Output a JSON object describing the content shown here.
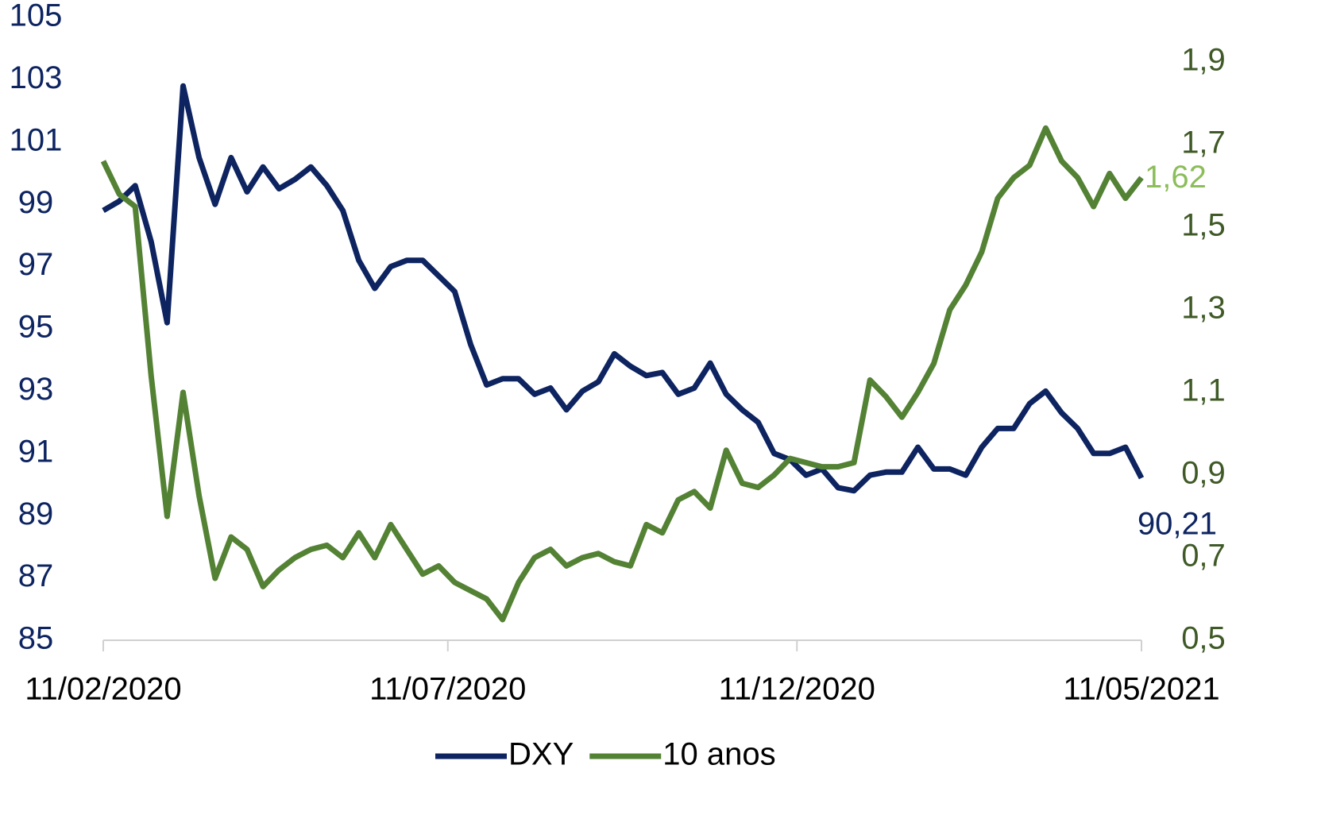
{
  "chart_data": {
    "type": "line",
    "x": [
      "11/02/2020",
      "18/02/2020",
      "25/02/2020",
      "03/03/2020",
      "10/03/2020",
      "17/03/2020",
      "24/03/2020",
      "31/03/2020",
      "07/04/2020",
      "14/04/2020",
      "21/04/2020",
      "28/04/2020",
      "05/05/2020",
      "12/05/2020",
      "19/05/2020",
      "26/05/2020",
      "02/06/2020",
      "09/06/2020",
      "16/06/2020",
      "23/06/2020",
      "30/06/2020",
      "07/07/2020",
      "14/07/2020",
      "21/07/2020",
      "28/07/2020",
      "04/08/2020",
      "11/08/2020",
      "18/08/2020",
      "25/08/2020",
      "01/09/2020",
      "08/09/2020",
      "15/09/2020",
      "22/09/2020",
      "29/09/2020",
      "06/10/2020",
      "13/10/2020",
      "20/10/2020",
      "27/10/2020",
      "03/11/2020",
      "10/11/2020",
      "17/11/2020",
      "24/11/2020",
      "01/12/2020",
      "08/12/2020",
      "15/12/2020",
      "22/12/2020",
      "29/12/2020",
      "05/01/2021",
      "12/01/2021",
      "19/01/2021",
      "26/01/2021",
      "02/02/2021",
      "09/02/2021",
      "16/02/2021",
      "23/02/2021",
      "02/03/2021",
      "09/03/2021",
      "16/03/2021",
      "23/03/2021",
      "30/03/2021",
      "06/04/2021",
      "13/04/2021",
      "20/04/2021",
      "27/04/2021",
      "04/05/2021",
      "11/05/2021"
    ],
    "xlim": [
      "11/02/2020",
      "11/05/2021"
    ],
    "xticks": [
      "11/02/2020",
      "11/07/2020",
      "11/12/2020",
      "11/05/2021"
    ],
    "ylim": [
      85,
      105
    ],
    "yticks": [
      85,
      87,
      89,
      91,
      93,
      95,
      97,
      99,
      101,
      103,
      105
    ],
    "y2lim": [
      0.5,
      1.9
    ],
    "y2ticks": [
      {
        "value": 0.5,
        "label": "0,5"
      },
      {
        "value": 0.7,
        "label": "0,7"
      },
      {
        "value": 0.9,
        "label": "0,9"
      },
      {
        "value": 1.1,
        "label": "1,1"
      },
      {
        "value": 1.3,
        "label": "1,3"
      },
      {
        "value": 1.5,
        "label": "1,5"
      },
      {
        "value": 1.7,
        "label": "1,7"
      },
      {
        "value": 1.9,
        "label": "1,9"
      }
    ],
    "grid": false,
    "legend": "bottom",
    "series": [
      {
        "name": "DXY",
        "color": "#0d2461",
        "axis": "y",
        "values": [
          98.8,
          99.1,
          99.6,
          97.8,
          95.2,
          102.8,
          100.5,
          99.0,
          100.5,
          99.4,
          100.2,
          99.5,
          99.8,
          100.2,
          99.6,
          98.8,
          97.2,
          96.3,
          97.0,
          97.2,
          97.2,
          96.7,
          96.2,
          94.5,
          93.2,
          93.4,
          93.4,
          92.9,
          93.1,
          92.4,
          93.0,
          93.3,
          94.2,
          93.8,
          93.5,
          93.6,
          92.9,
          93.1,
          93.9,
          92.9,
          92.4,
          92.0,
          91.0,
          90.8,
          90.3,
          90.5,
          89.9,
          89.8,
          90.3,
          90.4,
          90.4,
          91.2,
          90.5,
          90.5,
          90.3,
          91.2,
          91.8,
          91.8,
          92.6,
          93.0,
          92.3,
          91.8,
          91.0,
          91.0,
          91.2,
          90.21
        ],
        "value_labels": [
          null,
          null,
          null,
          null,
          null,
          null,
          null,
          null,
          null,
          null,
          null,
          null,
          null,
          null,
          null,
          null,
          null,
          null,
          null,
          null,
          null,
          null,
          null,
          null,
          null,
          null,
          null,
          null,
          null,
          null,
          null,
          null,
          null,
          null,
          null,
          null,
          null,
          null,
          null,
          null,
          null,
          null,
          null,
          null,
          null,
          null,
          null,
          null,
          null,
          null,
          null,
          null,
          null,
          null,
          null,
          null,
          null,
          null,
          null,
          null,
          null,
          null,
          null,
          null,
          null,
          "90,21"
        ],
        "label_color": "#0d2461"
      },
      {
        "name": "10 anos",
        "color": "#548235",
        "axis": "y2",
        "values": [
          1.66,
          1.58,
          1.55,
          1.14,
          0.8,
          1.1,
          0.85,
          0.65,
          0.75,
          0.72,
          0.63,
          0.67,
          0.7,
          0.72,
          0.73,
          0.7,
          0.76,
          0.7,
          0.78,
          0.72,
          0.66,
          0.68,
          0.64,
          0.62,
          0.6,
          0.55,
          0.64,
          0.7,
          0.72,
          0.68,
          0.7,
          0.71,
          0.69,
          0.68,
          0.78,
          0.76,
          0.84,
          0.86,
          0.82,
          0.96,
          0.88,
          0.87,
          0.9,
          0.94,
          0.93,
          0.92,
          0.92,
          0.93,
          1.13,
          1.09,
          1.04,
          1.1,
          1.17,
          1.3,
          1.36,
          1.44,
          1.57,
          1.62,
          1.65,
          1.74,
          1.66,
          1.62,
          1.55,
          1.63,
          1.57,
          1.62
        ],
        "value_labels": [
          null,
          null,
          null,
          null,
          null,
          null,
          null,
          null,
          null,
          null,
          null,
          null,
          null,
          null,
          null,
          null,
          null,
          null,
          null,
          null,
          null,
          null,
          null,
          null,
          null,
          null,
          null,
          null,
          null,
          null,
          null,
          null,
          null,
          null,
          null,
          null,
          null,
          null,
          null,
          null,
          null,
          null,
          null,
          null,
          null,
          null,
          null,
          null,
          null,
          null,
          null,
          null,
          null,
          null,
          null,
          null,
          null,
          null,
          null,
          null,
          null,
          null,
          null,
          null,
          null,
          "1,62"
        ],
        "label_color": "#8cbd5a"
      }
    ]
  }
}
